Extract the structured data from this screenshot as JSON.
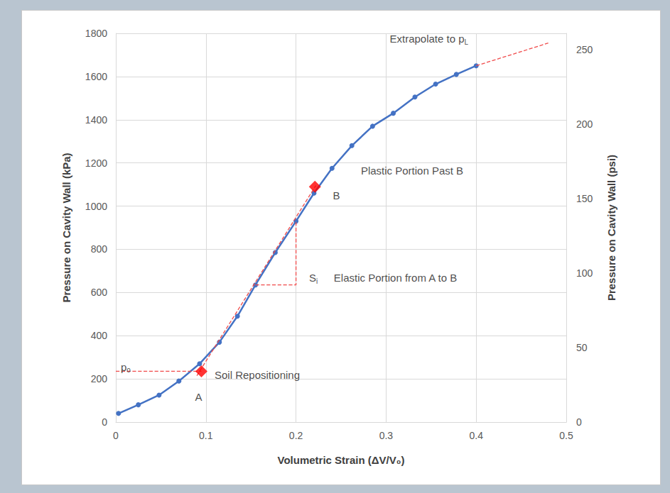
{
  "chart_data": {
    "type": "line",
    "x_label": "Volumetric Strain (ΔV/V₀)",
    "y_label": "Pressure on Cavity Wall (kPa)",
    "y2_label": "Pressure on Cavity Wall (psi)",
    "xlim": [
      0,
      0.5
    ],
    "xticks": [
      0,
      0.1,
      0.2,
      0.3,
      0.4,
      0.5
    ],
    "ylim": [
      0,
      1800
    ],
    "yticks": [
      0,
      200,
      400,
      600,
      800,
      1000,
      1200,
      1400,
      1600,
      1800
    ],
    "y2lim": [
      0,
      261.07
    ],
    "y2ticks": [
      0,
      50,
      100,
      150,
      200,
      250
    ],
    "grid": true,
    "series": [
      {
        "type": "line",
        "color": "#4472c4",
        "marker": "circle",
        "line_style": "solid",
        "x": [
          0.003,
          0.025,
          0.048,
          0.07,
          0.093,
          0.115,
          0.135,
          0.155,
          0.177,
          0.2,
          0.22,
          0.24,
          0.262,
          0.285,
          0.308,
          0.332,
          0.355,
          0.378,
          0.4
        ],
        "values": [
          40,
          80,
          125,
          190,
          270,
          370,
          490,
          635,
          785,
          930,
          1060,
          1175,
          1280,
          1370,
          1430,
          1505,
          1565,
          1610,
          1650
        ]
      },
      {
        "type": "line",
        "color": "#f04a4a",
        "marker": "none",
        "line_style": "dashed",
        "x": [
          0,
          0.095
        ],
        "values": [
          235,
          235
        ]
      },
      {
        "type": "line",
        "color": "#f04a4a",
        "marker": "none",
        "line_style": "dashed",
        "x": [
          0.09,
          0.222
        ],
        "values": [
          215,
          1095
        ]
      },
      {
        "type": "line",
        "color": "#f04a4a",
        "marker": "none",
        "line_style": "dashed",
        "x": [
          0.155,
          0.2,
          0.2
        ],
        "values": [
          635,
          635,
          930
        ]
      },
      {
        "type": "line",
        "color": "#f04a4a",
        "marker": "none",
        "line_style": "dashed",
        "x": [
          0.4,
          0.48
        ],
        "values": [
          1650,
          1755
        ]
      },
      {
        "type": "scatter",
        "color": "#ff0000",
        "marker": "diamond",
        "x": [
          0.095,
          0.221
        ],
        "values": [
          235,
          1090
        ]
      }
    ],
    "annotations": [
      {
        "text": "Extrapolate to p",
        "sub": "L",
        "x": 0.304,
        "y": 1774
      },
      {
        "text": "Plastic Portion Past B",
        "x": 0.272,
        "y": 1166
      },
      {
        "text": "B",
        "x": 0.241,
        "y": 1051
      },
      {
        "text": "S",
        "sub": "i",
        "x": 0.2145,
        "y": 667
      },
      {
        "text": "Elastic Portion from A to B",
        "x": 0.242,
        "y": 667
      },
      {
        "text": "p",
        "sub": "o",
        "x": 0.0055,
        "y": 256
      },
      {
        "text": "Soil Repositioning",
        "x": 0.1096,
        "y": 220
      },
      {
        "text": "A",
        "x": 0.088,
        "y": 115
      }
    ]
  }
}
